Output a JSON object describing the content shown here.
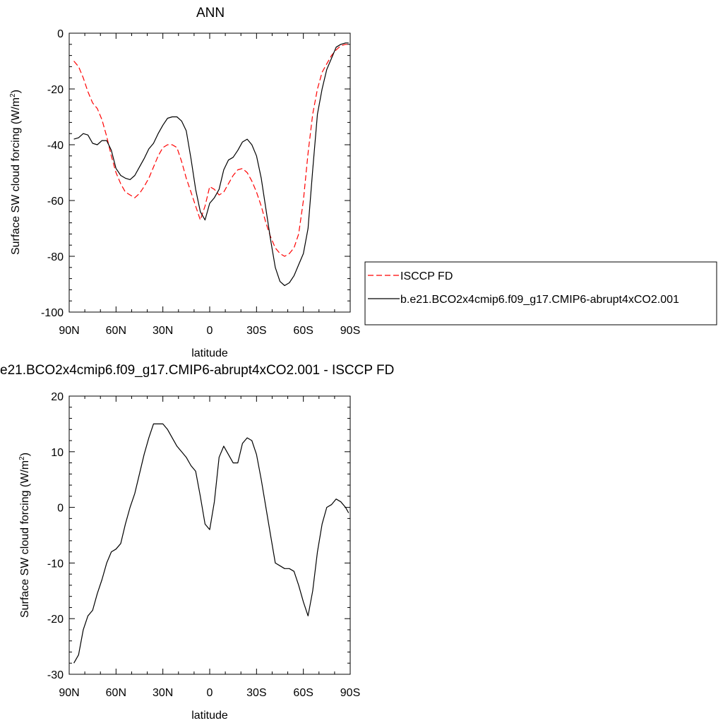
{
  "top_title": "ANN",
  "bottom_title": "e21.BCO2x4cmip6.f09_g17.CMIP6-abrupt4xCO2.001 - ISCCP FD",
  "chart_data": [
    {
      "type": "line",
      "title": "ANN",
      "xlabel": "latitude",
      "ylabel": "Surface SW cloud forcing (W/m",
      "ylabel_sup": "2",
      "ylabel_end": ")",
      "xlim": [
        -90,
        90
      ],
      "ylim": [
        -100,
        0
      ],
      "x_ticks": [
        -90,
        -60,
        -30,
        0,
        30,
        60,
        90
      ],
      "x_tick_labels": [
        "90N",
        "60N",
        "30N",
        "0",
        "30S",
        "60S",
        "90S"
      ],
      "y_ticks": [
        -100,
        -80,
        -60,
        -40,
        -20,
        0
      ],
      "y_tick_labels": [
        "-100",
        "-80",
        "-60",
        "-40",
        "-20",
        "0"
      ],
      "legend_position": "right",
      "series": [
        {
          "name": "ISCCP FD",
          "color": "#ff0000",
          "dash": "dashed",
          "x": [
            -87,
            -84,
            -81,
            -78,
            -75,
            -72,
            -69,
            -66,
            -63,
            -60,
            -57,
            -54,
            -51,
            -48,
            -45,
            -42,
            -39,
            -36,
            -33,
            -30,
            -27,
            -24,
            -21,
            -18,
            -15,
            -12,
            -9,
            -6,
            -3,
            0,
            3,
            6,
            9,
            12,
            15,
            18,
            21,
            24,
            27,
            30,
            33,
            36,
            39,
            42,
            45,
            48,
            51,
            54,
            57,
            60,
            63,
            66,
            69,
            72,
            75,
            78,
            81,
            84,
            87,
            89
          ],
          "y": [
            -10,
            -12,
            -16,
            -21,
            -25,
            -27,
            -31,
            -37,
            -44,
            -50,
            -54,
            -57,
            -58,
            -59,
            -57.5,
            -55,
            -52,
            -48,
            -44,
            -41,
            -40,
            -40,
            -41,
            -46,
            -52,
            -57,
            -62,
            -67,
            -62,
            -55,
            -56,
            -58,
            -57,
            -54,
            -51,
            -49,
            -48.5,
            -50,
            -53,
            -57,
            -62,
            -68,
            -73,
            -77,
            -79,
            -80,
            -79,
            -77,
            -72,
            -60,
            -43,
            -29,
            -20,
            -14,
            -11,
            -8,
            -6,
            -4.5,
            -4,
            -4
          ]
        },
        {
          "name": "b.e21.BCO2x4cmip6.f09_g17.CMIP6-abrupt4xCO2.001",
          "color": "#000000",
          "dash": "solid",
          "x": [
            -87,
            -84,
            -81,
            -78,
            -75,
            -72,
            -69,
            -66,
            -63,
            -60,
            -57,
            -54,
            -51,
            -48,
            -45,
            -42,
            -39,
            -36,
            -33,
            -30,
            -27,
            -24,
            -21,
            -18,
            -15,
            -12,
            -9,
            -6,
            -3,
            0,
            3,
            6,
            9,
            12,
            15,
            18,
            21,
            24,
            27,
            30,
            33,
            36,
            39,
            42,
            45,
            48,
            51,
            54,
            57,
            60,
            63,
            66,
            69,
            72,
            75,
            78,
            81,
            84,
            87,
            89
          ],
          "y": [
            -38,
            -37.5,
            -36,
            -36.5,
            -39.5,
            -40,
            -38.5,
            -38.5,
            -42,
            -48.5,
            -51,
            -52,
            -52.5,
            -51,
            -48,
            -45,
            -41.5,
            -39.5,
            -36,
            -33,
            -30.5,
            -30,
            -30,
            -31.5,
            -35,
            -45,
            -56,
            -64,
            -67,
            -61,
            -59,
            -56,
            -49,
            -45.5,
            -44.5,
            -42,
            -39,
            -38,
            -40,
            -44,
            -52,
            -63,
            -74,
            -84,
            -89,
            -90.5,
            -89.5,
            -87,
            -83,
            -79,
            -70,
            -49,
            -29,
            -20,
            -13,
            -9,
            -5,
            -4,
            -3.5,
            -3.5
          ]
        }
      ]
    },
    {
      "type": "line",
      "title": "e21.BCO2x4cmip6.f09_g17.CMIP6-abrupt4xCO2.001 - ISCCP FD",
      "xlabel": "latitude",
      "ylabel": "Surface SW cloud forcing (W/m",
      "ylabel_sup": "2",
      "ylabel_end": ")",
      "xlim": [
        -90,
        90
      ],
      "ylim": [
        -30,
        20
      ],
      "x_ticks": [
        -90,
        -60,
        -30,
        0,
        30,
        60,
        90
      ],
      "x_tick_labels": [
        "90N",
        "60N",
        "30N",
        "0",
        "30S",
        "60S",
        "90S"
      ],
      "y_ticks": [
        -30,
        -20,
        -10,
        0,
        10,
        20
      ],
      "y_tick_labels": [
        "-30",
        "-20",
        "-10",
        "0",
        "10",
        "20"
      ],
      "series": [
        {
          "color": "#000000",
          "dash": "solid",
          "x": [
            -87,
            -84,
            -81,
            -78,
            -75,
            -72,
            -69,
            -66,
            -63,
            -60,
            -57,
            -54,
            -51,
            -48,
            -45,
            -42,
            -39,
            -36,
            -33,
            -30,
            -27,
            -24,
            -21,
            -18,
            -15,
            -12,
            -9,
            -6,
            -3,
            0,
            3,
            6,
            9,
            12,
            15,
            18,
            21,
            24,
            27,
            30,
            33,
            36,
            39,
            42,
            45,
            48,
            51,
            54,
            57,
            60,
            63,
            66,
            69,
            72,
            75,
            78,
            81,
            84,
            87,
            89
          ],
          "y": [
            -28,
            -26.5,
            -22,
            -19.5,
            -18.5,
            -15.5,
            -13,
            -10,
            -8,
            -7.5,
            -6.5,
            -3,
            0,
            2.5,
            6,
            9.5,
            12.5,
            15,
            15,
            15,
            14,
            12.5,
            11,
            10,
            9,
            7.5,
            6.5,
            2,
            -3,
            -4,
            1,
            9,
            11,
            9.5,
            8,
            8,
            11.5,
            12.5,
            12,
            9.5,
            5,
            0,
            -5,
            -10,
            -10.5,
            -11,
            -11,
            -11.5,
            -14,
            -17,
            -19.5,
            -15,
            -8,
            -3,
            0,
            0.5,
            1.5,
            1,
            0,
            -1
          ]
        }
      ]
    }
  ]
}
